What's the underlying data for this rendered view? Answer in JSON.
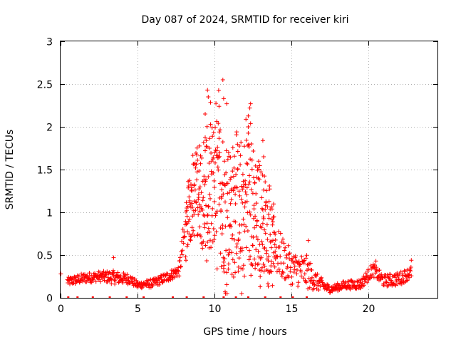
{
  "chart_data": {
    "type": "scatter",
    "title": "Day 087 of 2024, SRMTID for receiver kiri",
    "xlabel": "GPS time / hours",
    "ylabel": "SRMTID / TECUs",
    "xlim": [
      0,
      24.5
    ],
    "ylim": [
      0,
      3
    ],
    "x_ticks": [
      "0",
      "5",
      "10",
      "15",
      "20"
    ],
    "x_tick_values": [
      0,
      5,
      10,
      15,
      20
    ],
    "y_ticks": [
      "0",
      "0.5",
      "1",
      "1.5",
      "2",
      "2.5",
      "3"
    ],
    "y_tick_values": [
      0,
      0.5,
      1,
      1.5,
      2,
      2.5,
      3
    ],
    "grid": true,
    "marker": "+",
    "series": [
      {
        "name": "SRMTID",
        "color": "#ff0000",
        "profile": [
          {
            "x": 0.0,
            "level": 0.27,
            "spread": 0.02
          },
          {
            "x": 0.5,
            "level": 0.19,
            "spread": 0.05
          },
          {
            "x": 1.5,
            "level": 0.23,
            "spread": 0.06
          },
          {
            "x": 2.5,
            "level": 0.25,
            "spread": 0.06
          },
          {
            "x": 3.4,
            "level": 0.24,
            "spread": 0.08
          },
          {
            "x": 4.5,
            "level": 0.22,
            "spread": 0.06
          },
          {
            "x": 5.0,
            "level": 0.15,
            "spread": 0.04
          },
          {
            "x": 6.0,
            "level": 0.17,
            "spread": 0.05
          },
          {
            "x": 7.0,
            "level": 0.25,
            "spread": 0.06
          },
          {
            "x": 7.7,
            "level": 0.32,
            "spread": 0.07
          },
          {
            "x": 8.0,
            "level": 0.65,
            "spread": 0.25
          },
          {
            "x": 8.5,
            "level": 1.1,
            "spread": 0.45
          },
          {
            "x": 9.0,
            "level": 1.3,
            "spread": 0.55
          },
          {
            "x": 9.5,
            "level": 1.2,
            "spread": 0.8
          },
          {
            "x": 10.3,
            "level": 1.25,
            "spread": 0.9
          },
          {
            "x": 11.0,
            "level": 1.0,
            "spread": 0.8
          },
          {
            "x": 12.2,
            "level": 1.1,
            "spread": 0.85
          },
          {
            "x": 13.2,
            "level": 0.9,
            "spread": 0.6
          },
          {
            "x": 14.0,
            "level": 0.55,
            "spread": 0.3
          },
          {
            "x": 15.0,
            "level": 0.35,
            "spread": 0.2
          },
          {
            "x": 16.0,
            "level": 0.3,
            "spread": 0.2
          },
          {
            "x": 16.7,
            "level": 0.18,
            "spread": 0.1
          },
          {
            "x": 17.5,
            "level": 0.1,
            "spread": 0.04
          },
          {
            "x": 18.5,
            "level": 0.15,
            "spread": 0.05
          },
          {
            "x": 19.5,
            "level": 0.16,
            "spread": 0.06
          },
          {
            "x": 20.3,
            "level": 0.33,
            "spread": 0.08
          },
          {
            "x": 21.0,
            "level": 0.2,
            "spread": 0.07
          },
          {
            "x": 22.0,
            "level": 0.22,
            "spread": 0.08
          },
          {
            "x": 22.8,
            "level": 0.3,
            "spread": 0.07
          }
        ],
        "x_end": 22.8,
        "highlights": [
          {
            "x": 0.02,
            "y": 0.28
          },
          {
            "x": 3.45,
            "y": 0.47
          },
          {
            "x": 9.55,
            "y": 2.43
          },
          {
            "x": 9.6,
            "y": 2.35
          },
          {
            "x": 9.4,
            "y": 2.15
          },
          {
            "x": 10.3,
            "y": 2.24
          },
          {
            "x": 10.55,
            "y": 2.55
          },
          {
            "x": 10.6,
            "y": 2.33
          },
          {
            "x": 10.8,
            "y": 2.27
          },
          {
            "x": 12.35,
            "y": 2.27
          },
          {
            "x": 12.3,
            "y": 2.22
          },
          {
            "x": 12.2,
            "y": 2.0
          },
          {
            "x": 13.15,
            "y": 1.84
          },
          {
            "x": 13.2,
            "y": 1.65
          },
          {
            "x": 10.7,
            "y": 0.07
          },
          {
            "x": 16.1,
            "y": 0.67
          },
          {
            "x": 20.5,
            "y": 0.43
          },
          {
            "x": 22.8,
            "y": 0.44
          }
        ],
        "zero_markers": [
          0.5,
          1.1,
          2.1,
          3.2,
          4.3,
          5.4,
          7.3,
          8.2,
          9.3,
          10.6,
          11.4,
          12.2,
          13.3,
          14.3,
          15.1,
          16.0
        ]
      }
    ]
  }
}
